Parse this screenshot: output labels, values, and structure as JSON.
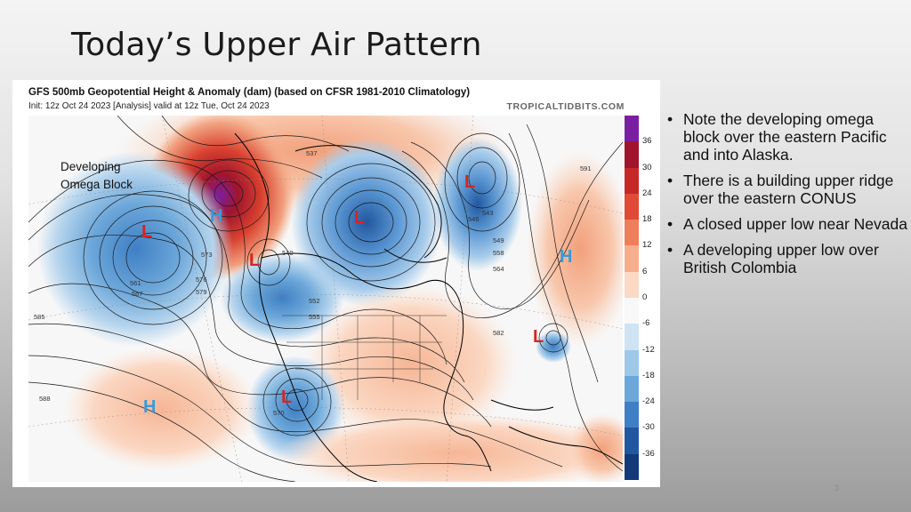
{
  "slide": {
    "title": "Today’s Upper Air Pattern",
    "page_number": "3"
  },
  "map": {
    "title": "GFS 500mb Geopotential Height & Anomaly (dam) (based on CFSR 1981-2010 Climatology)",
    "subtitle": "Init: 12z Oct 24 2023   [Analysis]   valid at 12z Tue, Oct 24 2023",
    "source": "TROPICALTIDBITS.COM",
    "annotation": [
      "Developing",
      "Omega Block"
    ],
    "colorbar": {
      "ticks": [
        "36",
        "30",
        "24",
        "18",
        "12",
        "6",
        "0",
        "-6",
        "-12",
        "-18",
        "-24",
        "-30",
        "-36"
      ],
      "colors": [
        "#7b1fa2",
        "#a0152c",
        "#c62828",
        "#e04a36",
        "#ef7e5a",
        "#f6ae8c",
        "#fcd9c4",
        "#f8f8f8",
        "#cfe3f2",
        "#9ec8e8",
        "#6ca7d9",
        "#3f7fc4",
        "#21579f",
        "#123a78"
      ]
    },
    "systems": [
      {
        "id": "l-pacific",
        "label": "L",
        "type": "low"
      },
      {
        "id": "h-omega",
        "label": "H",
        "type": "high"
      },
      {
        "id": "l-bc",
        "label": "L",
        "type": "low"
      },
      {
        "id": "l-hudson",
        "label": "L",
        "type": "low"
      },
      {
        "id": "l-labrador",
        "label": "L",
        "type": "low"
      },
      {
        "id": "h-atlantic",
        "label": "H",
        "type": "high"
      },
      {
        "id": "l-bermuda",
        "label": "L",
        "type": "low"
      },
      {
        "id": "l-baja",
        "label": "L",
        "type": "low"
      },
      {
        "id": "h-subtropic",
        "label": "H",
        "type": "high"
      }
    ],
    "height_labels": [
      "585",
      "588",
      "591",
      "573",
      "576",
      "579",
      "582",
      "567",
      "561",
      "543",
      "546",
      "549",
      "552",
      "555",
      "558",
      "564",
      "570",
      "540",
      "537"
    ]
  },
  "bullets": [
    "Note the developing omega block over the eastern Pacific and into Alaska.",
    "There is a building upper ridge over the eastern CONUS",
    "A closed upper low near Nevada",
    "A developing upper low over British Colombia"
  ]
}
